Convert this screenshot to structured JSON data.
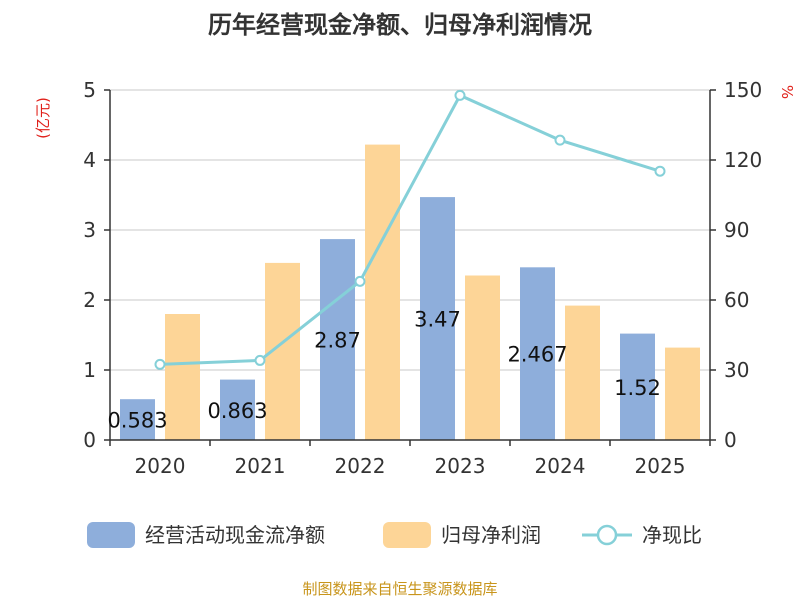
{
  "chart_data": {
    "type": "bar",
    "title": "历年经营现金净额、归母净利润情况",
    "categories": [
      "2020",
      "2021",
      "2022",
      "2023",
      "2024",
      "2025"
    ],
    "series": [
      {
        "name": "经营活动现金流净额",
        "kind": "bar",
        "axis": "left",
        "color": "#8eaedb",
        "values": [
          0.583,
          0.863,
          2.87,
          3.47,
          2.467,
          1.52
        ],
        "labels": [
          "0.583",
          "0.863",
          "2.87",
          "3.47",
          "2.467",
          "1.52"
        ]
      },
      {
        "name": "归母净利润",
        "kind": "bar",
        "axis": "left",
        "color": "#fdd597",
        "values": [
          1.8,
          2.53,
          4.22,
          2.35,
          1.92,
          1.32
        ]
      },
      {
        "name": "净现比",
        "kind": "line",
        "axis": "right",
        "color": "#85d0d8",
        "values": [
          32.4,
          34.1,
          68.0,
          147.7,
          128.5,
          115.2
        ]
      }
    ],
    "y_left": {
      "unit": "(亿元)",
      "ylim": [
        0,
        5
      ],
      "ticks": [
        "0",
        "1",
        "2",
        "3",
        "4",
        "5"
      ]
    },
    "y_right": {
      "unit": "%",
      "ylim": [
        0,
        150
      ],
      "ticks": [
        "0",
        "30",
        "60",
        "90",
        "120",
        "150"
      ]
    },
    "grid": true,
    "legend": "bottom"
  },
  "source": "制图数据来自恒生聚源数据库"
}
